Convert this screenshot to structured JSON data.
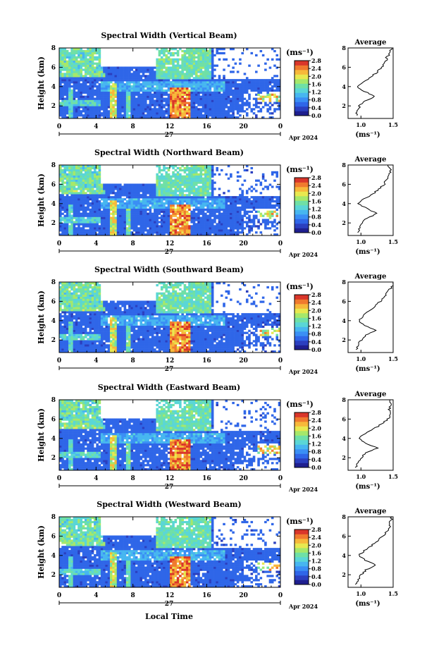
{
  "figure": {
    "xlabel_bottom": "Local Time"
  },
  "colors": {
    "colormap": [
      "#ffffff",
      "#1f1f8f",
      "#2b3fbf",
      "#2f66e8",
      "#3a8ff5",
      "#47b6f0",
      "#5ad6d6",
      "#6fe0a6",
      "#a6e86a",
      "#e8e84f",
      "#f7b83a",
      "#f07a2e",
      "#d9362a"
    ]
  },
  "chart_data": [
    {
      "type": "heatmap",
      "title": "Spectral Width (Vertical Beam)",
      "ylabel": "Height (km)",
      "x_ticks": [
        "0",
        "4",
        "8",
        "12",
        "16",
        "20",
        "0"
      ],
      "y_ticks": [
        "2",
        "4",
        "6",
        "8"
      ],
      "date_day": "27",
      "date_month": "Apr 2024",
      "colorbar_unit": "(ms⁻¹)",
      "colorbar_ticks": [
        "0.0",
        "0.4",
        "0.8",
        "1.2",
        "1.6",
        "2.0",
        "2.4",
        "2.8"
      ],
      "xlim": [
        0,
        24
      ],
      "ylim": [
        0.7,
        8
      ],
      "clim": [
        0,
        2.8
      ],
      "profile": {
        "title": "Average",
        "xlabel": "(ms⁻¹)",
        "x_ticks": [
          "1.0",
          "1.5"
        ],
        "y_ticks": [
          "2",
          "4",
          "6",
          "8"
        ],
        "xlim": [
          0.8,
          1.5
        ],
        "ylim": [
          0.7,
          8
        ],
        "height": [
          1.0,
          1.5,
          2.0,
          2.5,
          3.0,
          3.5,
          4.0,
          4.5,
          5.0,
          5.5,
          6.0,
          6.5,
          7.0,
          7.5,
          8.0
        ],
        "width": [
          0.92,
          0.95,
          0.98,
          1.05,
          1.22,
          1.05,
          0.95,
          1.05,
          1.15,
          1.25,
          1.32,
          1.38,
          1.4,
          1.45,
          1.48
        ]
      }
    },
    {
      "type": "heatmap",
      "title": "Spectral Width (Northward Beam)",
      "ylabel": "Height (km)",
      "x_ticks": [
        "0",
        "4",
        "8",
        "12",
        "16",
        "20",
        "0"
      ],
      "y_ticks": [
        "2",
        "4",
        "6",
        "8"
      ],
      "date_day": "27",
      "date_month": "Apr 2024",
      "colorbar_unit": "(ms⁻¹)",
      "colorbar_ticks": [
        "0.0",
        "0.4",
        "0.8",
        "1.2",
        "1.6",
        "2.0",
        "2.4",
        "2.8"
      ],
      "xlim": [
        0,
        24
      ],
      "ylim": [
        0.7,
        8
      ],
      "clim": [
        0,
        2.8
      ],
      "profile": {
        "title": "Average",
        "xlabel": "(ms⁻¹)",
        "x_ticks": [
          "1.0",
          "1.5"
        ],
        "y_ticks": [
          "2",
          "4",
          "6",
          "8"
        ],
        "xlim": [
          0.8,
          1.5
        ],
        "ylim": [
          0.7,
          8
        ],
        "height": [
          1.0,
          1.5,
          2.0,
          2.5,
          3.0,
          3.5,
          4.0,
          4.5,
          5.0,
          5.5,
          6.0,
          6.5,
          7.0,
          7.5,
          8.0
        ],
        "width": [
          0.95,
          0.97,
          1.02,
          1.1,
          1.25,
          1.08,
          0.97,
          1.05,
          1.18,
          1.28,
          1.36,
          1.4,
          1.45,
          1.46,
          1.42
        ]
      }
    },
    {
      "type": "heatmap",
      "title": "Spectral Width (Southward Beam)",
      "ylabel": "Height (km)",
      "x_ticks": [
        "0",
        "4",
        "8",
        "12",
        "16",
        "20",
        "0"
      ],
      "y_ticks": [
        "2",
        "4",
        "6",
        "8"
      ],
      "date_day": "27",
      "date_month": "Apr 2024",
      "colorbar_unit": "(ms⁻¹)",
      "colorbar_ticks": [
        "0.0",
        "0.4",
        "0.8",
        "1.2",
        "1.6",
        "2.0",
        "2.4",
        "2.8"
      ],
      "xlim": [
        0,
        24
      ],
      "ylim": [
        0.7,
        8
      ],
      "clim": [
        0,
        2.8
      ],
      "profile": {
        "title": "Average",
        "xlabel": "(ms⁻¹)",
        "x_ticks": [
          "1.0",
          "1.5"
        ],
        "y_ticks": [
          "2",
          "4",
          "6",
          "8"
        ],
        "xlim": [
          0.8,
          1.5
        ],
        "ylim": [
          0.7,
          8
        ],
        "height": [
          1.0,
          1.5,
          2.0,
          2.5,
          3.0,
          3.5,
          4.0,
          4.5,
          5.0,
          5.5,
          6.0,
          6.5,
          7.0,
          7.5,
          8.0
        ],
        "width": [
          0.93,
          0.96,
          1.0,
          1.08,
          1.22,
          1.06,
          0.96,
          1.03,
          1.12,
          1.22,
          1.3,
          1.36,
          1.42,
          1.48,
          1.5
        ]
      }
    },
    {
      "type": "heatmap",
      "title": "Spectral Width (Eastward Beam)",
      "ylabel": "Height (km)",
      "x_ticks": [
        "0",
        "4",
        "8",
        "12",
        "16",
        "20",
        "0"
      ],
      "y_ticks": [
        "2",
        "4",
        "6",
        "8"
      ],
      "date_day": "27",
      "date_month": "Apr 2024",
      "colorbar_unit": "(ms⁻¹)",
      "colorbar_ticks": [
        "0.0",
        "0.4",
        "0.8",
        "1.2",
        "1.6",
        "2.0",
        "2.4",
        "2.8"
      ],
      "xlim": [
        0,
        24
      ],
      "ylim": [
        0.7,
        8
      ],
      "clim": [
        0,
        2.8
      ],
      "profile": {
        "title": "Average",
        "xlabel": "(ms⁻¹)",
        "x_ticks": [
          "1.0",
          "1.5"
        ],
        "y_ticks": [
          "2",
          "4",
          "6",
          "8"
        ],
        "xlim": [
          0.8,
          1.5
        ],
        "ylim": [
          0.7,
          8
        ],
        "height": [
          1.0,
          1.5,
          2.0,
          2.5,
          3.0,
          3.5,
          4.0,
          4.5,
          5.0,
          5.5,
          6.0,
          6.5,
          7.0,
          7.5,
          8.0
        ],
        "width": [
          0.92,
          0.95,
          1.0,
          1.08,
          1.25,
          1.08,
          0.97,
          1.06,
          1.2,
          1.32,
          1.42,
          1.46,
          1.44,
          1.47,
          1.45
        ]
      }
    },
    {
      "type": "heatmap",
      "title": "Spectral Width (Westward Beam)",
      "ylabel": "Height (km)",
      "x_ticks": [
        "0",
        "4",
        "8",
        "12",
        "16",
        "20",
        "0"
      ],
      "y_ticks": [
        "2",
        "4",
        "6",
        "8"
      ],
      "date_day": "27",
      "date_month": "Apr 2024",
      "colorbar_unit": "(ms⁻¹)",
      "colorbar_ticks": [
        "0.0",
        "0.4",
        "0.8",
        "1.2",
        "1.6",
        "2.0",
        "2.4",
        "2.8"
      ],
      "xlim": [
        0,
        24
      ],
      "ylim": [
        0.7,
        8
      ],
      "clim": [
        0,
        2.8
      ],
      "profile": {
        "title": "Average",
        "xlabel": "(ms⁻¹)",
        "x_ticks": [
          "1.0",
          "1.5"
        ],
        "y_ticks": [
          "2",
          "4",
          "6",
          "8"
        ],
        "xlim": [
          0.8,
          1.5
        ],
        "ylim": [
          0.7,
          8
        ],
        "height": [
          1.0,
          1.5,
          2.0,
          2.5,
          3.0,
          3.5,
          4.0,
          4.5,
          5.0,
          5.5,
          6.0,
          6.5,
          7.0,
          7.5,
          8.0
        ],
        "width": [
          0.93,
          0.96,
          1.0,
          1.08,
          1.24,
          1.07,
          0.97,
          1.05,
          1.16,
          1.26,
          1.34,
          1.4,
          1.44,
          1.46,
          1.48
        ]
      }
    }
  ]
}
